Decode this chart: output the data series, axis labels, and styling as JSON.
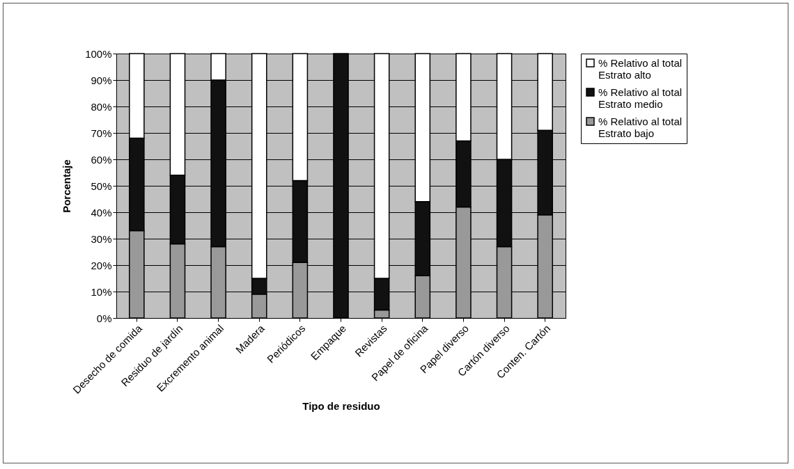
{
  "chart_data": {
    "type": "bar",
    "stacked": true,
    "xlabel": "Tipo de residuo",
    "ylabel": "Porcentaje",
    "categories": [
      "Desecho de comida",
      "Residuo de jardín",
      "Excremento animal",
      "Madera",
      "Periódicos",
      "Empaque",
      "Revistas",
      "Papel de oficina",
      "Papel diverso",
      "Cartón diverso",
      "Conten. Cartón"
    ],
    "series": [
      {
        "name": "% Relativo al total Estrato bajo",
        "color": "#999999",
        "values": [
          33,
          28,
          27,
          9,
          21,
          0,
          3,
          16,
          42,
          27,
          39
        ]
      },
      {
        "name": "% Relativo al total Estrato medio",
        "color": "#111111",
        "values": [
          35,
          26,
          63,
          6,
          31,
          100,
          12,
          28,
          25,
          33,
          32
        ]
      },
      {
        "name": "% Relativo al total Estrato alto",
        "color": "#ffffff",
        "values": [
          32,
          46,
          10,
          85,
          48,
          0,
          85,
          56,
          33,
          40,
          29
        ]
      }
    ],
    "ylim": [
      0,
      100
    ],
    "yticks": [
      {
        "value": 0,
        "label": "0%"
      },
      {
        "value": 10,
        "label": "10%"
      },
      {
        "value": 20,
        "label": "20%"
      },
      {
        "value": 30,
        "label": "30%"
      },
      {
        "value": 40,
        "label": "40%"
      },
      {
        "value": 50,
        "label": "50%"
      },
      {
        "value": 60,
        "label": "60%"
      },
      {
        "value": 70,
        "label": "70%"
      },
      {
        "value": 80,
        "label": "80%"
      },
      {
        "value": 90,
        "label": "90%"
      },
      {
        "value": 100,
        "label": "100%"
      }
    ],
    "grid": true,
    "legend": "right"
  }
}
